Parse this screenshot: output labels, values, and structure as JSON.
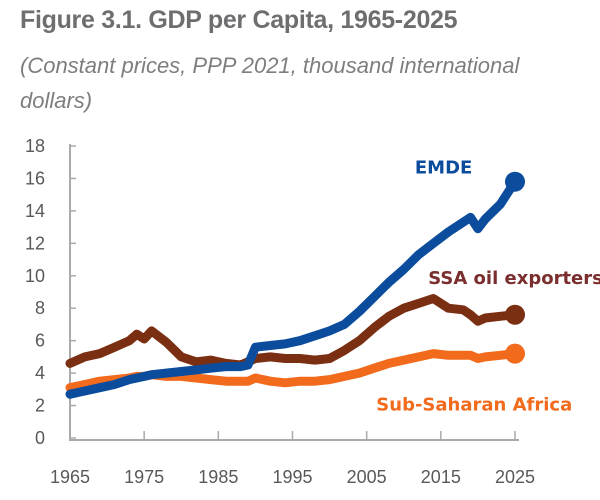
{
  "chart_data": {
    "type": "line",
    "title": "Figure 3.1. GDP per Capita, 1965-2025",
    "subtitle": "(Constant prices, PPP 2021, thousand international dollars)",
    "xlabel": "",
    "ylabel": "",
    "xlim": [
      1965,
      2025
    ],
    "ylim": [
      0,
      18
    ],
    "x_ticks": [
      1965,
      1975,
      1985,
      1995,
      2005,
      2015,
      2025
    ],
    "y_ticks": [
      0,
      2,
      4,
      6,
      8,
      10,
      12,
      14,
      16,
      18
    ],
    "grid": false,
    "legend": "inline-labels",
    "x": [
      1965,
      1967,
      1969,
      1971,
      1973,
      1974,
      1975,
      1976,
      1978,
      1980,
      1982,
      1984,
      1986,
      1988,
      1989,
      1990,
      1992,
      1994,
      1996,
      1998,
      2000,
      2002,
      2004,
      2006,
      2008,
      2010,
      2012,
      2014,
      2016,
      2018,
      2019,
      2020,
      2021,
      2023,
      2025
    ],
    "series": [
      {
        "name": "EMDE",
        "color": "#0b4c9c",
        "label_color": "#0b4c9c",
        "values": [
          2.7,
          2.9,
          3.1,
          3.3,
          3.6,
          3.7,
          3.8,
          3.9,
          4.0,
          4.1,
          4.2,
          4.3,
          4.4,
          4.4,
          4.5,
          5.6,
          5.7,
          5.8,
          6.0,
          6.3,
          6.6,
          7.0,
          7.8,
          8.7,
          9.6,
          10.4,
          11.3,
          12.0,
          12.7,
          13.3,
          13.6,
          12.9,
          13.5,
          14.4,
          15.8
        ]
      },
      {
        "name": "SSA oil exporters",
        "color": "#7b2f12",
        "label_color": "#7a2e2e",
        "values": [
          4.6,
          5.0,
          5.2,
          5.6,
          6.0,
          6.4,
          6.1,
          6.6,
          5.9,
          5.0,
          4.7,
          4.8,
          4.6,
          4.5,
          4.7,
          4.9,
          5.0,
          4.9,
          4.9,
          4.8,
          4.9,
          5.4,
          6.0,
          6.8,
          7.5,
          8.0,
          8.3,
          8.6,
          8.0,
          7.9,
          7.6,
          7.2,
          7.4,
          7.5,
          7.6
        ]
      },
      {
        "name": "Sub-Saharan Africa",
        "color": "#f26b1d",
        "label_color": "#f26b1d",
        "values": [
          3.1,
          3.3,
          3.5,
          3.6,
          3.7,
          3.8,
          3.8,
          3.9,
          3.8,
          3.8,
          3.7,
          3.6,
          3.5,
          3.5,
          3.5,
          3.7,
          3.5,
          3.4,
          3.5,
          3.5,
          3.6,
          3.8,
          4.0,
          4.3,
          4.6,
          4.8,
          5.0,
          5.2,
          5.1,
          5.1,
          5.1,
          4.9,
          5.0,
          5.1,
          5.2
        ]
      }
    ]
  }
}
